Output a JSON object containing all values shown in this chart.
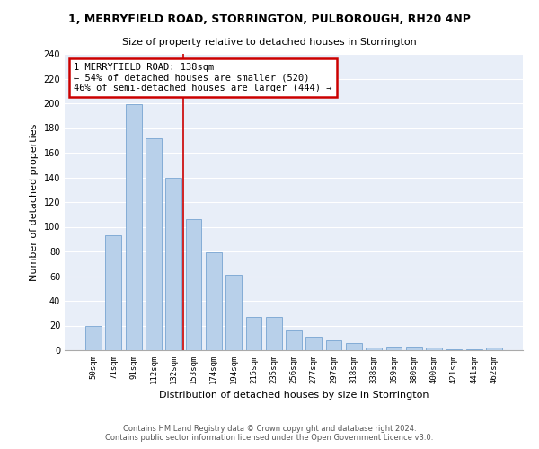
{
  "title": "1, MERRYFIELD ROAD, STORRINGTON, PULBOROUGH, RH20 4NP",
  "subtitle": "Size of property relative to detached houses in Storrington",
  "xlabel": "Distribution of detached houses by size in Storrington",
  "ylabel": "Number of detached properties",
  "categories": [
    "50sqm",
    "71sqm",
    "91sqm",
    "112sqm",
    "132sqm",
    "153sqm",
    "174sqm",
    "194sqm",
    "215sqm",
    "235sqm",
    "256sqm",
    "277sqm",
    "297sqm",
    "318sqm",
    "338sqm",
    "359sqm",
    "380sqm",
    "400sqm",
    "421sqm",
    "441sqm",
    "462sqm"
  ],
  "values": [
    20,
    93,
    199,
    172,
    140,
    106,
    79,
    61,
    27,
    27,
    16,
    11,
    8,
    6,
    2,
    3,
    3,
    2,
    1,
    1,
    2
  ],
  "bar_color": "#b8d0ea",
  "bar_edge_color": "#6699cc",
  "property_label": "1 MERRYFIELD ROAD: 138sqm",
  "annotation_line1": "← 54% of detached houses are smaller (520)",
  "annotation_line2": "46% of semi-detached houses are larger (444) →",
  "annotation_box_color": "#ffffff",
  "annotation_box_edge_color": "#cc0000",
  "vline_color": "#cc0000",
  "vline_x": 4.5,
  "footer1": "Contains HM Land Registry data © Crown copyright and database right 2024.",
  "footer2": "Contains public sector information licensed under the Open Government Licence v3.0.",
  "background_color": "#e8eef8",
  "grid_color": "#ffffff",
  "ylim": [
    0,
    240
  ],
  "yticks": [
    0,
    20,
    40,
    60,
    80,
    100,
    120,
    140,
    160,
    180,
    200,
    220,
    240
  ]
}
